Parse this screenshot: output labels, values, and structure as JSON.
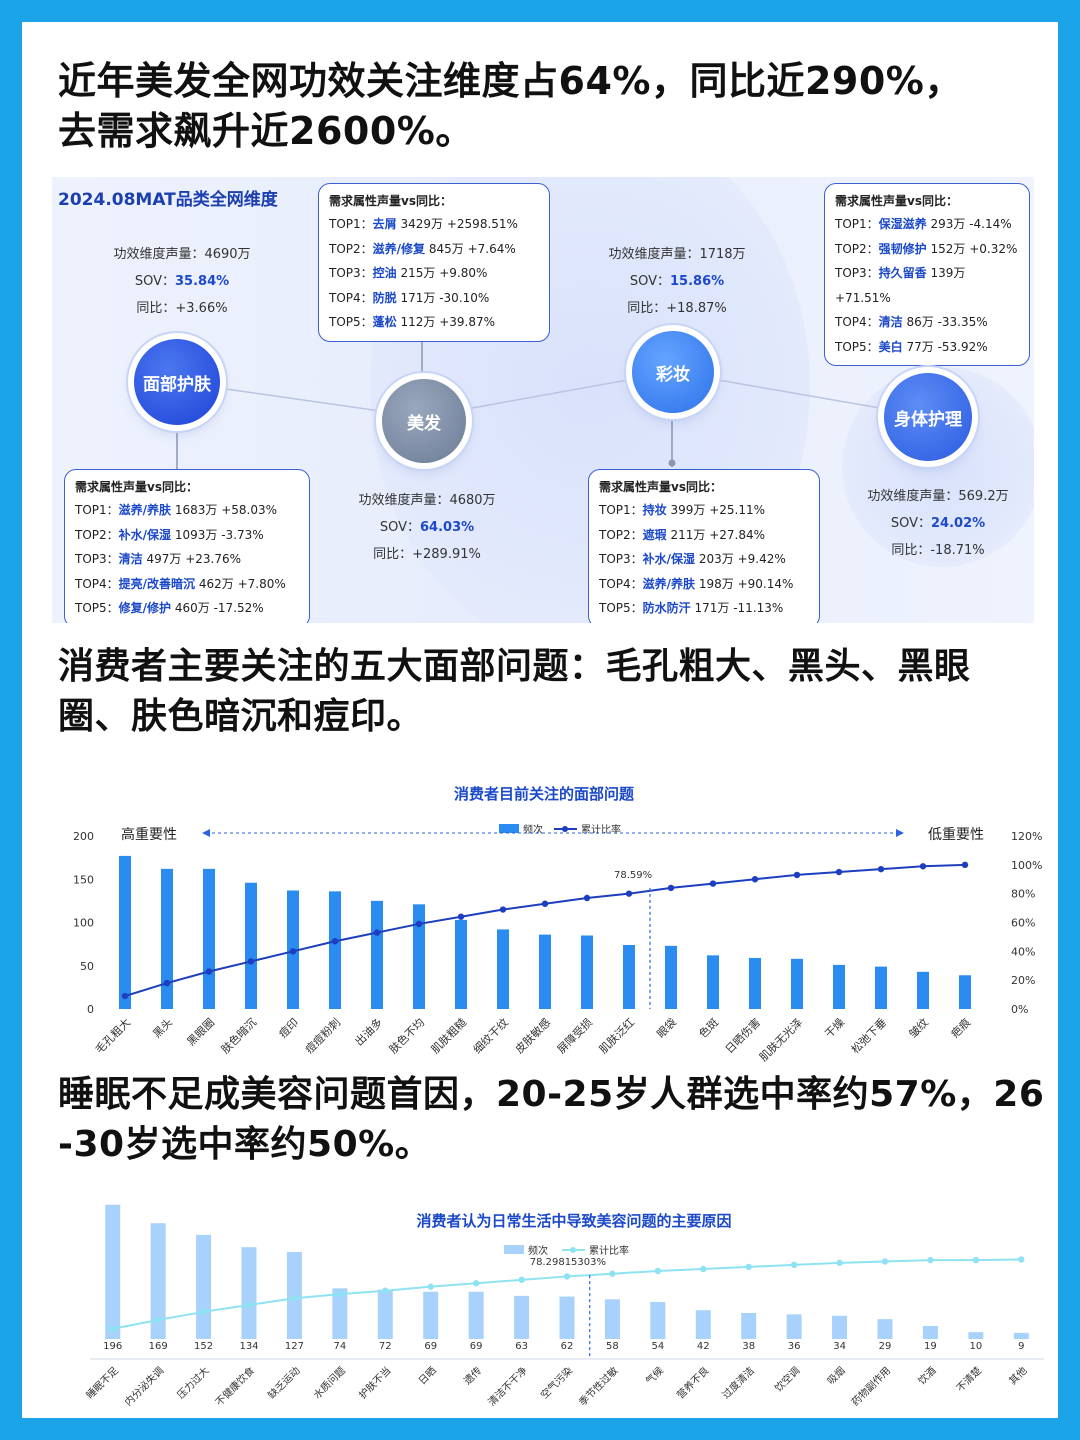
{
  "headline1": {
    "line1": "近年美发全网功效关注维度占64%，同比近290%，",
    "line2": "去需求飙升近2600%。"
  },
  "panel": {
    "title": "2024.08MAT品类全网维度",
    "nodes": [
      {
        "name": "面部护肤",
        "volume_label": "功效维度声量：4690万",
        "sov_label": "SOV：",
        "sov": "35.84%",
        "yoy_label": "同比：+3.66%",
        "box": {
          "title": "需求属性声量vs同比：",
          "rows": [
            {
              "rank": "TOP1：",
              "key": "滋养/养肤",
              "val": "1683万 +58.03%"
            },
            {
              "rank": "TOP2：",
              "key": "补水/保湿",
              "val": "1093万 -3.73%"
            },
            {
              "rank": "TOP3：",
              "key": "清洁",
              "val": "497万 +23.76%"
            },
            {
              "rank": "TOP4：",
              "key": "提亮/改善暗沉",
              "val": "462万 +7.80%"
            },
            {
              "rank": "TOP5：",
              "key": "修复/修护",
              "val": "460万 -17.52%"
            }
          ]
        }
      },
      {
        "name": "美发",
        "volume_label": "功效维度声量：4680万",
        "sov_label": "SOV：",
        "sov": "64.03%",
        "yoy_label": "同比：+289.91%",
        "box": {
          "title": "需求属性声量vs同比：",
          "rows": [
            {
              "rank": "TOP1：",
              "key": "去屑",
              "val": "3429万 +2598.51%"
            },
            {
              "rank": "TOP2：",
              "key": "滋养/修复",
              "val": "845万 +7.64%"
            },
            {
              "rank": "TOP3：",
              "key": "控油",
              "val": "215万 +9.80%"
            },
            {
              "rank": "TOP4：",
              "key": "防脱",
              "val": "171万 -30.10%"
            },
            {
              "rank": "TOP5：",
              "key": "蓬松",
              "val": "112万 +39.87%"
            }
          ]
        }
      },
      {
        "name": "彩妆",
        "volume_label": "功效维度声量：1718万",
        "sov_label": "SOV：",
        "sov": "15.86%",
        "yoy_label": "同比：+18.87%",
        "box": {
          "title": "需求属性声量vs同比：",
          "rows": [
            {
              "rank": "TOP1：",
              "key": "持妆",
              "val": "399万 +25.11%"
            },
            {
              "rank": "TOP2：",
              "key": "遮瑕",
              "val": "211万 +27.84%"
            },
            {
              "rank": "TOP3：",
              "key": "补水/保湿",
              "val": "203万 +9.42%"
            },
            {
              "rank": "TOP4：",
              "key": "滋养/养肤",
              "val": "198万 +90.14%"
            },
            {
              "rank": "TOP5：",
              "key": "防水防汗",
              "val": "171万 -11.13%"
            }
          ]
        }
      },
      {
        "name": "身体护理",
        "volume_label": "功效维度声量：569.2万",
        "sov_label": "SOV：",
        "sov": "24.02%",
        "yoy_label": "同比：-18.71%",
        "box": {
          "title": "需求属性声量vs同比：",
          "rows": [
            {
              "rank": "TOP1：",
              "key": "保湿滋养",
              "val": "293万 -4.14%"
            },
            {
              "rank": "TOP2：",
              "key": "强韧修护",
              "val": "152万 +0.32%"
            },
            {
              "rank": "TOP3：",
              "key": "持久留香",
              "val": "139万 +71.51%"
            },
            {
              "rank": "TOP4：",
              "key": "清洁",
              "val": "86万 -33.35%"
            },
            {
              "rank": "TOP5：",
              "key": "美白",
              "val": "77万 -53.92%"
            }
          ]
        }
      }
    ]
  },
  "headline2": {
    "line1": "消费者主要关注的五大面部问题：毛孔粗大、黑头、黑眼",
    "line2": "圈、肤色暗沉和痘印。"
  },
  "headline3": {
    "line1": "睡眠不足成美容问题首因，20-25岁人群选中率约57%，26",
    "line2": "-30岁选中率约50%。"
  },
  "chart_data": [
    {
      "type": "bar",
      "title": "消费者目前关注的面部问题",
      "legend": [
        "频次",
        "累计比率"
      ],
      "left_note": "高重要性",
      "right_note": "低重要性",
      "categories": [
        "毛孔粗大",
        "黑头",
        "黑眼圈",
        "肤色暗沉",
        "痘印",
        "痘痘粉刺",
        "出油多",
        "肤色不均",
        "肌肤粗糙",
        "细纹干纹",
        "皮肤敏感",
        "屏障受损",
        "肌肤泛红",
        "眼袋",
        "色斑",
        "日晒伤害",
        "肌肤无光泽",
        "干燥",
        "松弛下垂",
        "皱纹",
        "疤痕"
      ],
      "values": [
        177,
        162,
        162,
        146,
        137,
        136,
        125,
        121,
        103,
        92,
        86,
        85,
        74,
        73,
        62,
        59,
        58,
        51,
        49,
        43,
        39
      ],
      "cumulative": [
        9,
        18,
        26,
        33,
        40,
        47,
        53,
        59,
        64,
        69,
        73,
        77,
        80,
        84,
        87,
        90,
        93,
        95,
        97,
        99,
        100
      ],
      "annotation": "78.59%",
      "ylim": [
        0,
        200
      ],
      "yticks": [
        "0",
        "50",
        "100",
        "150",
        "200"
      ],
      "y2ticks": [
        "0%",
        "20%",
        "40%",
        "60%",
        "80%",
        "100%",
        "120%"
      ],
      "y2lim": [
        0,
        120
      ]
    },
    {
      "type": "bar",
      "title": "消费者认为日常生活中导致美容问题的主要原因",
      "legend": [
        "频次",
        "累计比率"
      ],
      "categories": [
        "睡眠不足",
        "内分泌失调",
        "压力过大",
        "不健康饮食",
        "缺乏运动",
        "水质问题",
        "护肤不当",
        "日晒",
        "遗传",
        "清洁不干净",
        "空气污染",
        "季节性过敏",
        "气候",
        "营养不良",
        "过度清洁",
        "饮空调",
        "吸烟",
        "药物副作用",
        "饮酒",
        "不清楚",
        "其他"
      ],
      "values": [
        196,
        169,
        152,
        134,
        127,
        74,
        72,
        69,
        69,
        63,
        62,
        58,
        54,
        42,
        38,
        36,
        34,
        29,
        19,
        10,
        9
      ],
      "cumulative": [
        15,
        28,
        40,
        50,
        60,
        66,
        71,
        77,
        82,
        87,
        92,
        96,
        100,
        103,
        106,
        109,
        112,
        114,
        116,
        116,
        117
      ],
      "annotation": "78.29815303%",
      "ylim": [
        0,
        200
      ]
    }
  ]
}
